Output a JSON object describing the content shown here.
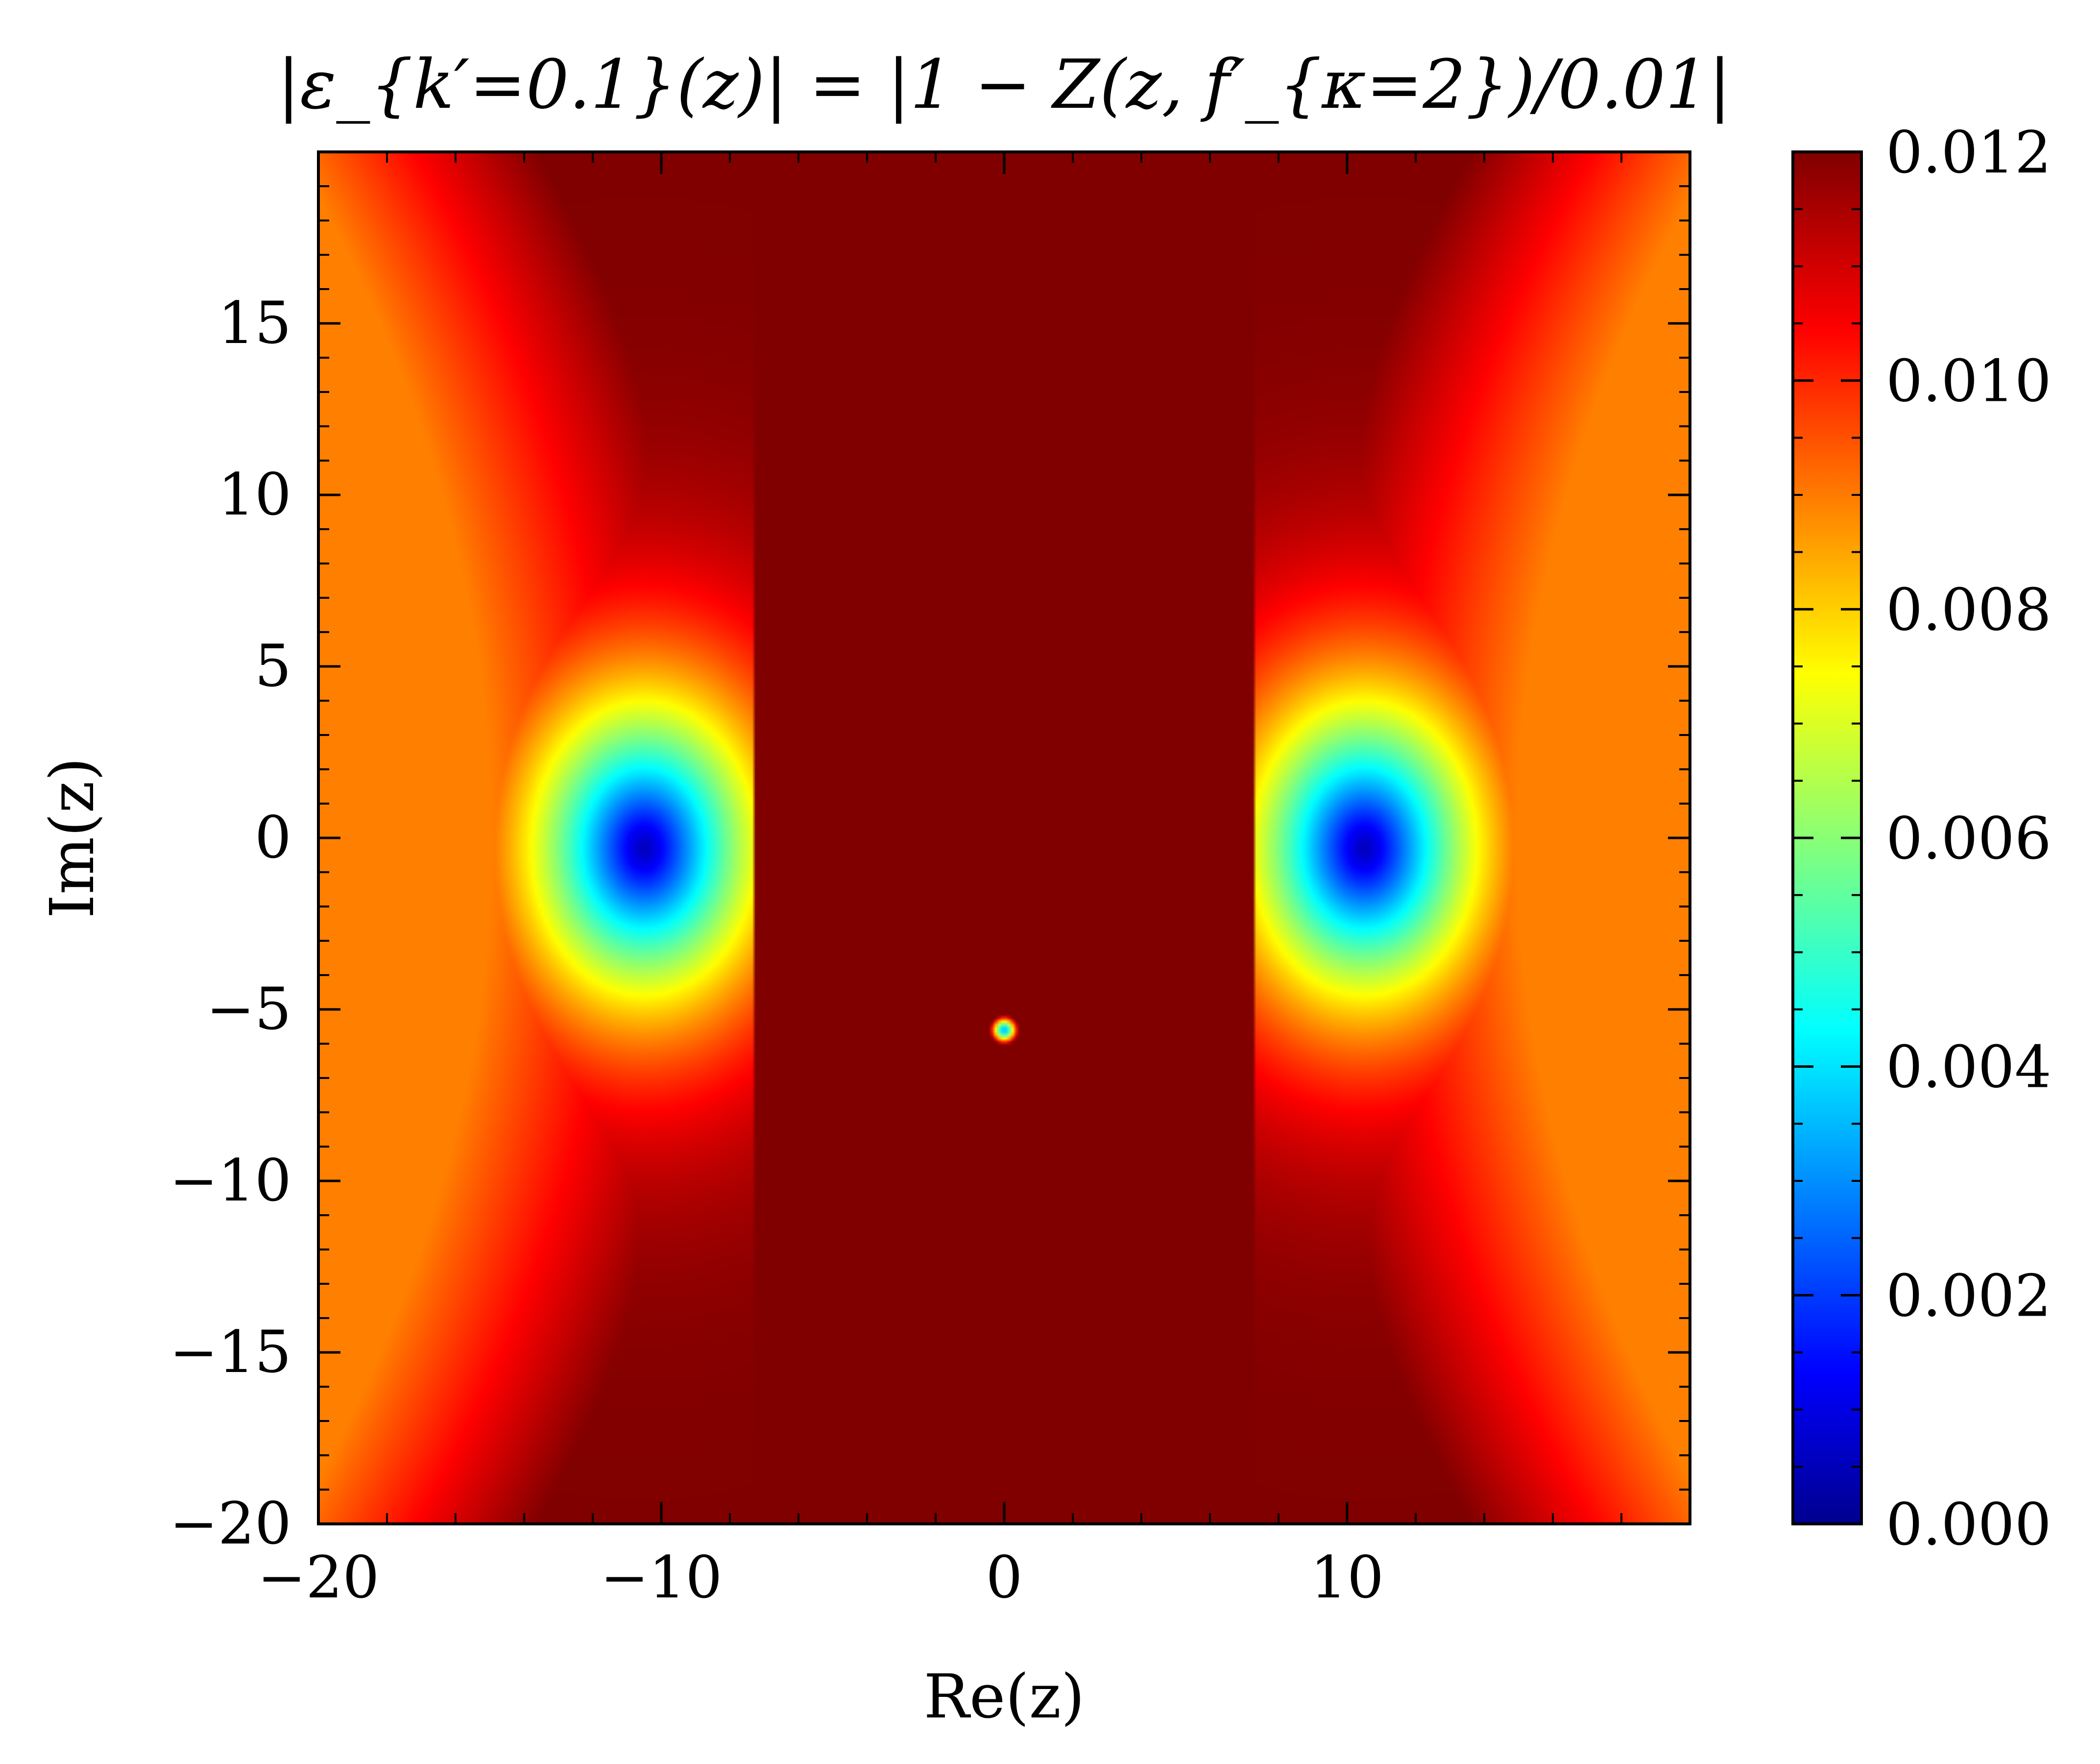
{
  "chart_data": {
    "type": "heatmap",
    "title": "|ε_{k′=0.1}(z)| = |1 − Z(z, f′_{κ=2})/0.01|",
    "xlabel": "Re(z)",
    "ylabel": "Im(z)",
    "xlim": [
      -20,
      20
    ],
    "ylim": [
      -20,
      20
    ],
    "x_ticks": [
      -20,
      -10,
      0,
      10
    ],
    "x_tick_labels": [
      "−20",
      "−10",
      "0",
      "10"
    ],
    "y_ticks": [
      -20,
      -15,
      -10,
      -5,
      0,
      5,
      10,
      15
    ],
    "y_tick_labels": [
      "−20",
      "−15",
      "−10",
      "−5",
      "0",
      "5",
      "10",
      "15"
    ],
    "colormap": "jet",
    "colorbar": {
      "vmin": 0.0,
      "vmax": 0.012,
      "ticks": [
        0.0,
        0.002,
        0.004,
        0.006,
        0.008,
        0.01,
        0.012
      ],
      "tick_labels": [
        "0.000",
        "0.002",
        "0.004",
        "0.006",
        "0.008",
        "0.010",
        "0.012"
      ]
    },
    "features": [
      {
        "re": -10.5,
        "im": -0.3,
        "value": 0.0
      },
      {
        "re": 10.5,
        "im": -0.3,
        "value": 0.0
      },
      {
        "re": 0.0,
        "im": -5.6,
        "value": 0.004
      }
    ],
    "saturated_region_value": 0.012,
    "grid": false,
    "colors": {
      "low": "#00008f",
      "blue": "#0000ff",
      "cyan": "#00ffff",
      "yellow": "#ffff00",
      "red": "#ff0000",
      "high": "#800000"
    }
  }
}
